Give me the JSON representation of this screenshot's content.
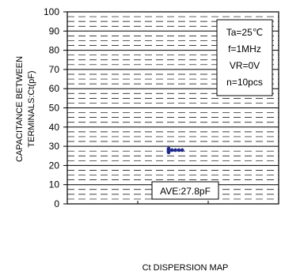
{
  "chart_data": {
    "type": "scatter",
    "title": "",
    "xlabel": "",
    "caption": "Ct DISPERSION MAP",
    "ylabel_lines": [
      "CAPACITANCE BETWEEN",
      "TERMINALS:Ct(pF)"
    ],
    "ylim": [
      0,
      100
    ],
    "y_ticks": [
      0,
      10,
      20,
      30,
      40,
      50,
      60,
      70,
      80,
      90,
      100
    ],
    "y_tick_labels": [
      "0",
      "10",
      "20",
      "30",
      "40",
      "50",
      "60",
      "70",
      "80",
      "90",
      "100"
    ],
    "grid": true,
    "series": [
      {
        "color": "#1f2a8c",
        "points": [
          {
            "x": 0,
            "y": 28.8
          },
          {
            "x": 0,
            "y": 28.4
          },
          {
            "x": 0,
            "y": 28.0
          },
          {
            "x": 0,
            "y": 27.6
          },
          {
            "x": 0,
            "y": 27.2
          },
          {
            "x": 0,
            "y": 26.8
          },
          {
            "x": 1,
            "y": 28.0
          },
          {
            "x": 2,
            "y": 28.0
          },
          {
            "x": 3,
            "y": 28.0
          },
          {
            "x": 4,
            "y": 28.0
          }
        ]
      }
    ],
    "conditions": {
      "lines": [
        "Ta=25℃",
        "f=1MHz",
        "VR=0V",
        "n=10pcs"
      ],
      "position": "top-right"
    },
    "average_label": "AVE:27.8pF",
    "average_value": 27.8
  }
}
